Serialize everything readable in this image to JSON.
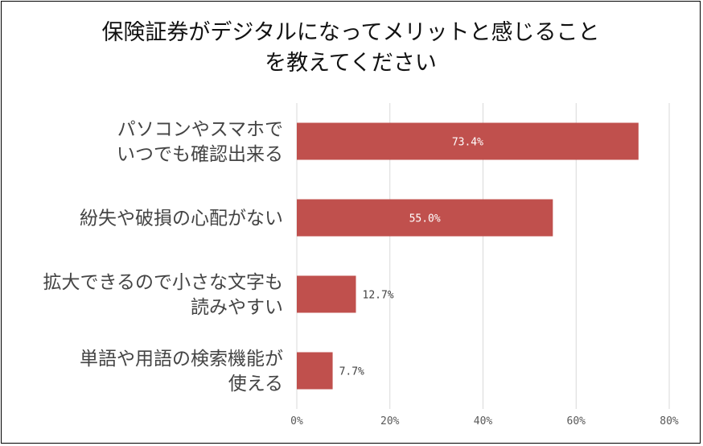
{
  "chart_data": {
    "type": "bar",
    "orientation": "horizontal",
    "title_lines": [
      "保険証券がデジタルになってメリットと感じること",
      "を教えてください"
    ],
    "categories": [
      [
        "パソコンやスマホで",
        "いつでも確認出来る"
      ],
      [
        "紛失や破損の心配がない"
      ],
      [
        "拡大できるので小さな文字も",
        "読みやすい"
      ],
      [
        "単語や用語の検索機能が",
        "使える"
      ]
    ],
    "values": [
      73.4,
      55.0,
      12.7,
      7.7
    ],
    "data_labels": [
      "73.4%",
      "55.0%",
      "12.7%",
      "7.7%"
    ],
    "xlim": [
      0,
      80
    ],
    "xticks": [
      "0%",
      "20%",
      "40%",
      "60%",
      "80%"
    ],
    "grid": true,
    "bar_color": "#c0504d"
  }
}
